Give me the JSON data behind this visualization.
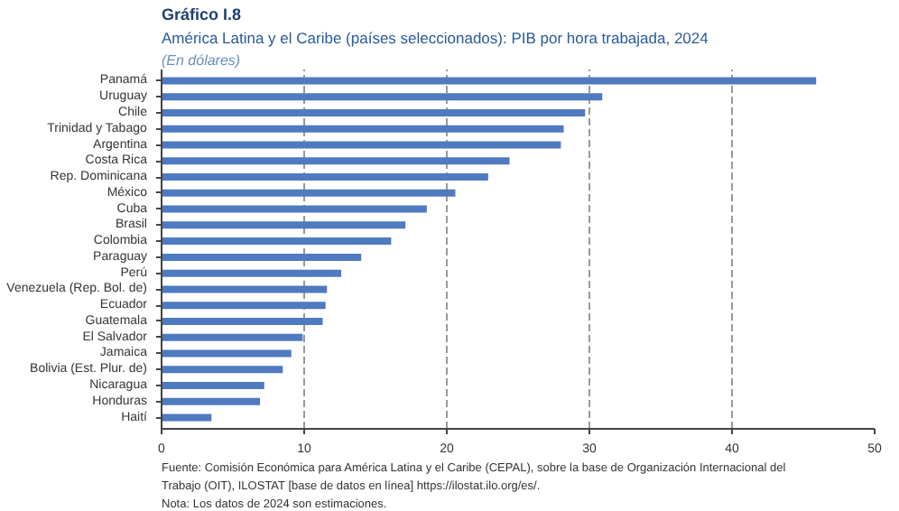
{
  "chart_data": {
    "type": "bar",
    "orientation": "horizontal",
    "title": "Gráfico I.8",
    "subtitle": "América Latina y el Caribe (países seleccionados): PIB por hora trabajada, 2024",
    "annotations": [
      "(En dólares)",
      "Fuente: Comisión Económica para América Latina y el Caribe (CEPAL), sobre la base de Organización Internacional del Trabajo (OIT), ILOSTAT [base de datos en línea] https://ilostat.ilo.org/es/.",
      "Nota: Los datos de 2024 son estimaciones."
    ],
    "categories": [
      "Panamá",
      "Uruguay",
      "Chile",
      "Trinidad y Tabago",
      "Argentina",
      "Costa Rica",
      "Rep. Dominicana",
      "México",
      "Cuba",
      "Brasil",
      "Colombia",
      "Paraguay",
      "Perú",
      "Venezuela (Rep. Bol. de)",
      "Ecuador",
      "Guatemala",
      "El Salvador",
      "Jamaica",
      "Bolivia (Est. Plur. de)",
      "Nicaragua",
      "Honduras",
      "Haití"
    ],
    "values": [
      45.9,
      30.9,
      29.7,
      28.2,
      28.0,
      24.4,
      22.9,
      20.6,
      18.6,
      17.1,
      16.1,
      14.0,
      12.6,
      11.6,
      11.5,
      11.3,
      9.9,
      9.1,
      8.5,
      7.2,
      6.9,
      3.5
    ],
    "color": "#4f7ac0",
    "xlim": [
      0,
      50
    ],
    "xticks": [
      0,
      10,
      20,
      30,
      40,
      50
    ],
    "grid": "x"
  }
}
